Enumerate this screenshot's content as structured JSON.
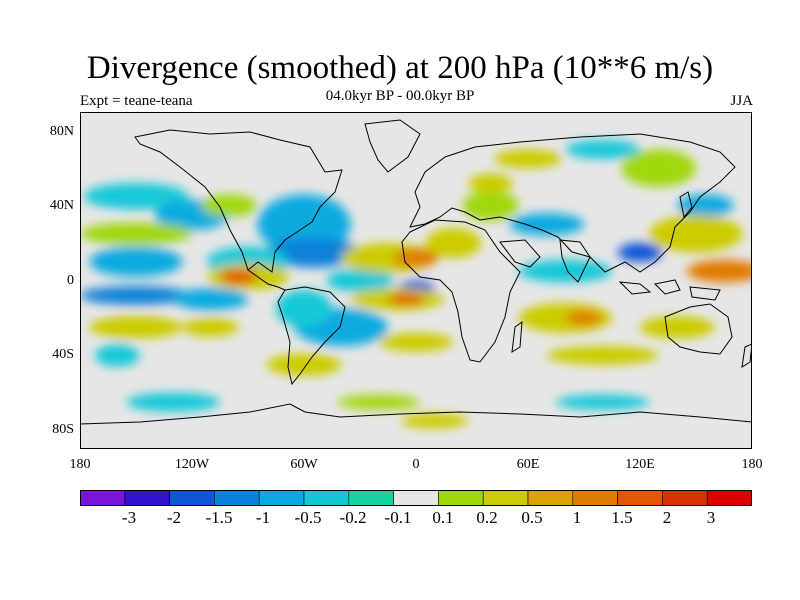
{
  "title": "Divergence (smoothed) at 200 hPa (10**6 m/s)",
  "subtitle": "04.0kyr BP - 00.0kyr BP",
  "left_label": "Expt = teane-teana",
  "right_label": "JJA",
  "lat_labels": [
    "80N",
    "40N",
    "0",
    "40S",
    "80S"
  ],
  "lon_labels": [
    "180",
    "120W",
    "60W",
    "0",
    "60E",
    "120E",
    "180"
  ],
  "colorbar": {
    "labels": [
      "-3",
      "-2",
      "-1.5",
      "-1",
      "-0.5",
      "-0.2",
      "-0.1",
      "0.1",
      "0.2",
      "0.5",
      "1",
      "1.5",
      "2",
      "3"
    ],
    "colors": [
      "#7a14d8",
      "#3114cf",
      "#0f55d8",
      "#0a82d8",
      "#0aaae0",
      "#12c8d8",
      "#14d4a0",
      "#e6e6e6",
      "#a0d80a",
      "#cccc00",
      "#dca400",
      "#e07c00",
      "#e05800",
      "#dc3000",
      "#dc0000"
    ]
  },
  "map_data": {
    "background_color": "#e6e6e6",
    "lat_range": [
      -90,
      90
    ],
    "lon_range": [
      -180,
      180
    ],
    "blobs": [
      {
        "lon": -150,
        "lat": 45,
        "rx": 28,
        "ry": 7,
        "c": 5
      },
      {
        "lon": -120,
        "lat": 35,
        "rx": 20,
        "ry": 8,
        "c": 4
      },
      {
        "lon": -60,
        "lat": 30,
        "rx": 25,
        "ry": 16,
        "c": 4
      },
      {
        "lon": -55,
        "lat": 15,
        "rx": 25,
        "ry": 8,
        "c": 3
      },
      {
        "lon": -150,
        "lat": 10,
        "rx": 25,
        "ry": 8,
        "c": 4
      },
      {
        "lon": -90,
        "lat": 10,
        "rx": 22,
        "ry": 8,
        "c": 5
      },
      {
        "lon": -150,
        "lat": -8,
        "rx": 30,
        "ry": 5,
        "c": 3
      },
      {
        "lon": -110,
        "lat": -10,
        "rx": 20,
        "ry": 6,
        "c": 4
      },
      {
        "lon": -30,
        "lat": 0,
        "rx": 18,
        "ry": 6,
        "c": 5
      },
      {
        "lon": 0,
        "lat": -5,
        "rx": 10,
        "ry": 5,
        "c": 2
      },
      {
        "lon": -40,
        "lat": -25,
        "rx": 25,
        "ry": 10,
        "c": 4
      },
      {
        "lon": -60,
        "lat": -15,
        "rx": 15,
        "ry": 10,
        "c": 5
      },
      {
        "lon": 80,
        "lat": 5,
        "rx": 25,
        "ry": 6,
        "c": 5
      },
      {
        "lon": 70,
        "lat": 30,
        "rx": 20,
        "ry": 6,
        "c": 4
      },
      {
        "lon": 120,
        "lat": 15,
        "rx": 12,
        "ry": 5,
        "c": 2
      },
      {
        "lon": 155,
        "lat": 40,
        "rx": 15,
        "ry": 6,
        "c": 4
      },
      {
        "lon": 100,
        "lat": 70,
        "rx": 20,
        "ry": 5,
        "c": 5
      },
      {
        "lon": -130,
        "lat": -65,
        "rx": 25,
        "ry": 5,
        "c": 5
      },
      {
        "lon": 100,
        "lat": -65,
        "rx": 25,
        "ry": 4,
        "c": 5
      },
      {
        "lon": -160,
        "lat": -40,
        "rx": 12,
        "ry": 6,
        "c": 5
      },
      {
        "lon": 40,
        "lat": 40,
        "rx": 15,
        "ry": 8,
        "c": 8
      },
      {
        "lon": 40,
        "lat": 52,
        "rx": 12,
        "ry": 5,
        "c": 9
      },
      {
        "lon": -150,
        "lat": 25,
        "rx": 30,
        "ry": 6,
        "c": 8
      },
      {
        "lon": -100,
        "lat": 40,
        "rx": 15,
        "ry": 6,
        "c": 8
      },
      {
        "lon": 150,
        "lat": 25,
        "rx": 25,
        "ry": 10,
        "c": 9
      },
      {
        "lon": 165,
        "lat": 5,
        "rx": 20,
        "ry": 6,
        "c": 11
      },
      {
        "lon": -15,
        "lat": 12,
        "rx": 25,
        "ry": 8,
        "c": 9
      },
      {
        "lon": 20,
        "lat": 20,
        "rx": 15,
        "ry": 8,
        "c": 9
      },
      {
        "lon": 0,
        "lat": 12,
        "rx": 12,
        "ry": 5,
        "c": 11
      },
      {
        "lon": -90,
        "lat": 2,
        "rx": 22,
        "ry": 7,
        "c": 9
      },
      {
        "lon": -95,
        "lat": 2,
        "rx": 10,
        "ry": 4,
        "c": 12
      },
      {
        "lon": -10,
        "lat": -10,
        "rx": 25,
        "ry": 6,
        "c": 9
      },
      {
        "lon": -5,
        "lat": -10,
        "rx": 10,
        "ry": 3,
        "c": 12
      },
      {
        "lon": 80,
        "lat": -20,
        "rx": 25,
        "ry": 8,
        "c": 9
      },
      {
        "lon": 90,
        "lat": -20,
        "rx": 10,
        "ry": 4,
        "c": 11
      },
      {
        "lon": 140,
        "lat": -25,
        "rx": 20,
        "ry": 6,
        "c": 9
      },
      {
        "lon": -150,
        "lat": -25,
        "rx": 25,
        "ry": 6,
        "c": 9
      },
      {
        "lon": -110,
        "lat": -25,
        "rx": 15,
        "ry": 5,
        "c": 9
      },
      {
        "lon": -60,
        "lat": -45,
        "rx": 20,
        "ry": 6,
        "c": 9
      },
      {
        "lon": 0,
        "lat": -33,
        "rx": 20,
        "ry": 5,
        "c": 9
      },
      {
        "lon": 100,
        "lat": -40,
        "rx": 30,
        "ry": 5,
        "c": 9
      },
      {
        "lon": -20,
        "lat": -65,
        "rx": 22,
        "ry": 4,
        "c": 8
      },
      {
        "lon": 10,
        "lat": -75,
        "rx": 18,
        "ry": 4,
        "c": 9
      },
      {
        "lon": 130,
        "lat": 60,
        "rx": 20,
        "ry": 10,
        "c": 8
      },
      {
        "lon": 60,
        "lat": 65,
        "rx": 18,
        "ry": 5,
        "c": 9
      }
    ]
  }
}
